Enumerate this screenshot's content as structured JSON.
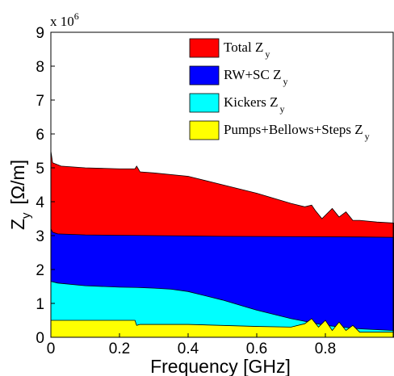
{
  "chart_data": {
    "type": "area",
    "title": "",
    "xlabel": "Frequency [GHz]",
    "ylabel": "Z",
    "ylabel_subscript": "y",
    "ylabel_unit": "[Ω/m]",
    "exponent_label": "x 10",
    "exponent_power": "6",
    "xlim": [
      0,
      1.0
    ],
    "ylim": [
      0,
      9
    ],
    "x_ticks": [
      "0",
      "0.2",
      "0.4",
      "0.6",
      "0.8"
    ],
    "x_tick_values": [
      0,
      0.2,
      0.4,
      0.6,
      0.8
    ],
    "y_ticks": [
      "0",
      "1",
      "2",
      "3",
      "4",
      "5",
      "6",
      "7",
      "8",
      "9"
    ],
    "y_tick_values": [
      0,
      1,
      2,
      3,
      4,
      5,
      6,
      7,
      8,
      9
    ],
    "grid": false,
    "legend_position": "top-right",
    "series": [
      {
        "name": "Total Z",
        "name_subscript": "y",
        "color": "#ff0000",
        "x": [
          0,
          0.005,
          0.03,
          0.1,
          0.2,
          0.245,
          0.25,
          0.26,
          0.3,
          0.4,
          0.5,
          0.6,
          0.7,
          0.74,
          0.76,
          0.77,
          0.79,
          0.82,
          0.84,
          0.86,
          0.88,
          0.9,
          0.95,
          1.0
        ],
        "values": [
          5.5,
          5.15,
          5.05,
          5.0,
          4.97,
          4.97,
          5.05,
          4.88,
          4.85,
          4.75,
          4.5,
          4.25,
          3.95,
          3.85,
          3.9,
          3.75,
          3.5,
          3.8,
          3.55,
          3.7,
          3.45,
          3.45,
          3.4,
          3.37
        ]
      },
      {
        "name": "RW+SC Z",
        "name_subscript": "y",
        "color": "#0000ff",
        "x": [
          0,
          0.005,
          0.02,
          0.1,
          0.3,
          0.5,
          0.7,
          0.9,
          1.0
        ],
        "values": [
          3.2,
          3.1,
          3.05,
          3.02,
          3.0,
          2.98,
          2.97,
          2.96,
          2.95
        ]
      },
      {
        "name": "Kickers Z",
        "name_subscript": "y",
        "color": "#00ffff",
        "x": [
          0,
          0.02,
          0.1,
          0.2,
          0.25,
          0.3,
          0.35,
          0.4,
          0.5,
          0.6,
          0.7,
          0.8,
          0.9,
          1.0
        ],
        "values": [
          1.65,
          1.6,
          1.52,
          1.48,
          1.47,
          1.45,
          1.42,
          1.35,
          1.1,
          0.8,
          0.55,
          0.35,
          0.25,
          0.2
        ]
      },
      {
        "name": "Pumps+Bellows+Steps Z",
        "name_subscript": "y",
        "color": "#ffff00",
        "x": [
          0,
          0.1,
          0.2,
          0.245,
          0.25,
          0.26,
          0.4,
          0.6,
          0.7,
          0.74,
          0.76,
          0.78,
          0.8,
          0.82,
          0.84,
          0.86,
          0.88,
          0.9,
          1.0
        ],
        "values": [
          0.5,
          0.5,
          0.5,
          0.5,
          0.35,
          0.38,
          0.38,
          0.32,
          0.3,
          0.4,
          0.55,
          0.3,
          0.5,
          0.2,
          0.45,
          0.2,
          0.35,
          0.15,
          0.15
        ]
      }
    ]
  }
}
